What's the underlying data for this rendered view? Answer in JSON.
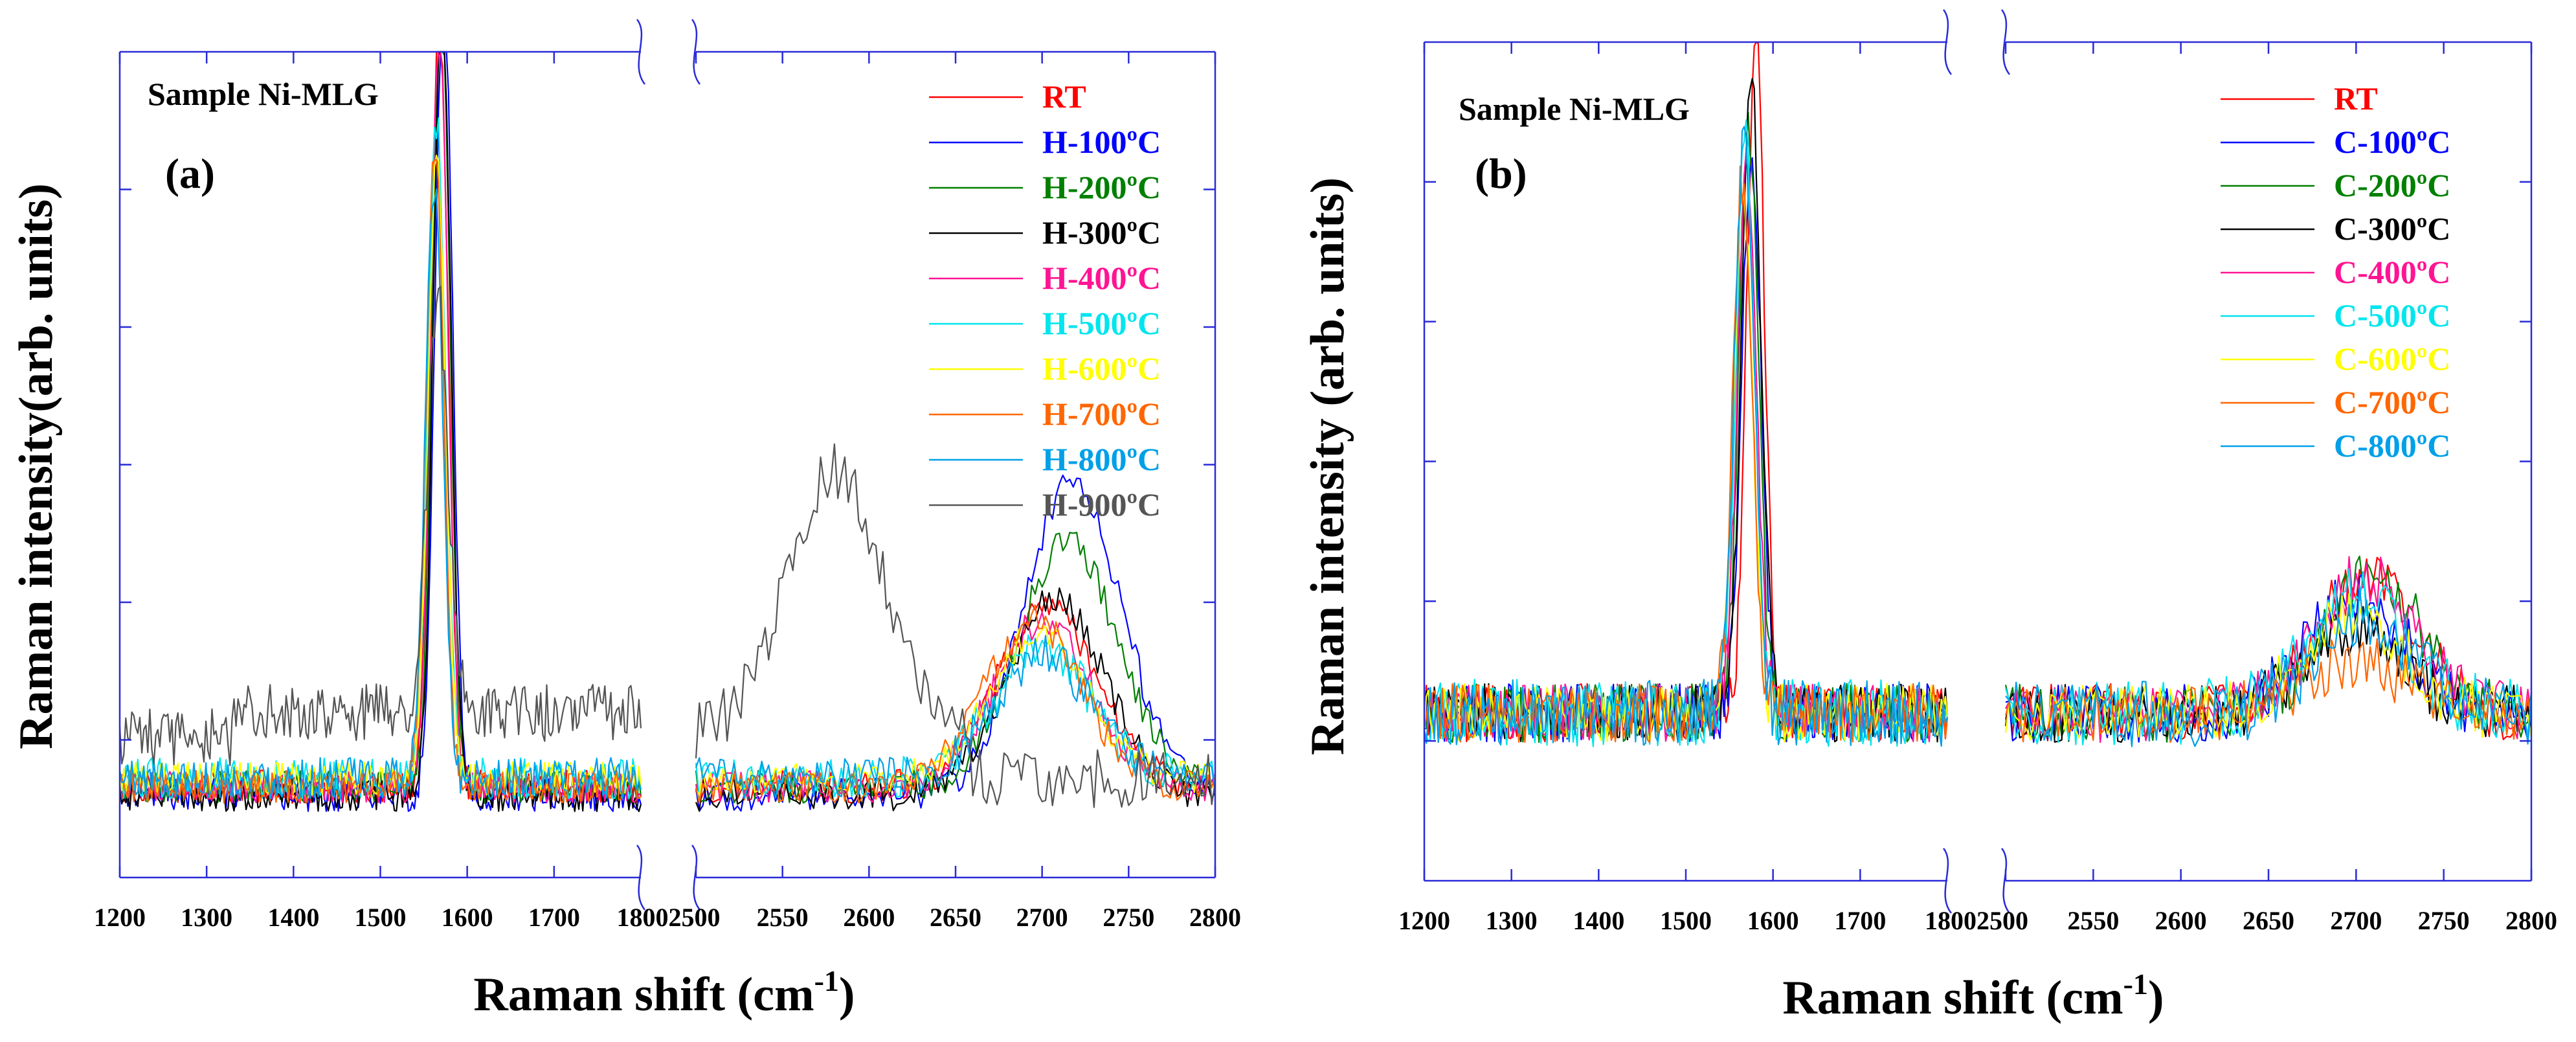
{
  "figure": {
    "panels": [
      "a",
      "b"
    ]
  },
  "chart_data": [
    {
      "type": "line",
      "panel_label": "(a)",
      "sample_label": "Sample Ni-MLG",
      "ylabel": "Raman intensity(arb. units)",
      "xlabel_main": "Raman shift (cm",
      "xlabel_sup": "-1",
      "xlabel_close": ")",
      "x_ranges": [
        [
          1200,
          1800
        ],
        [
          2500,
          2800
        ]
      ],
      "xticks": [
        [
          1200,
          1300,
          1400,
          1500,
          1600,
          1700
        ],
        [
          2500,
          2550,
          2600,
          2650,
          2700,
          2750,
          2800
        ]
      ],
      "xtick_labels": [
        "1200",
        "1300",
        "1400",
        "1500",
        "1600",
        "1700",
        "18002500",
        "2550",
        "2600",
        "2650",
        "2700",
        "2750",
        "2800"
      ],
      "ylim": [
        0,
        1
      ],
      "legend_position": "top-right",
      "series": [
        {
          "name": "RT",
          "color": "#ff0000",
          "g_center": 1568,
          "g_height": 0.93,
          "g_width": 10,
          "d2_center": 2703,
          "d2_height": 0.22,
          "base": 0.11,
          "noise": 0.02
        },
        {
          "name": "H-100ºC",
          "color": "#0000ff",
          "g_center": 1573,
          "g_height": 0.98,
          "g_width": 10,
          "d2_center": 2718,
          "d2_height": 0.38,
          "base": 0.1,
          "noise": 0.02
        },
        {
          "name": "H-200ºC",
          "color": "#007f00",
          "g_center": 1570,
          "g_height": 0.96,
          "g_width": 10,
          "d2_center": 2715,
          "d2_height": 0.3,
          "base": 0.11,
          "noise": 0.02
        },
        {
          "name": "H-300ºC",
          "color": "#000000",
          "g_center": 1571,
          "g_height": 0.96,
          "g_width": 10,
          "d2_center": 2708,
          "d2_height": 0.24,
          "base": 0.1,
          "noise": 0.02
        },
        {
          "name": "H-400ºC",
          "color": "#ff1493",
          "g_center": 1568,
          "g_height": 0.92,
          "g_width": 10,
          "d2_center": 2700,
          "d2_height": 0.2,
          "base": 0.11,
          "noise": 0.02
        },
        {
          "name": "H-500ºC",
          "color": "#00e5ee",
          "g_center": 1565,
          "g_height": 0.8,
          "g_width": 10,
          "d2_center": 2700,
          "d2_height": 0.16,
          "base": 0.12,
          "noise": 0.025
        },
        {
          "name": "H-600ºC",
          "color": "#ffff00",
          "g_center": 1565,
          "g_height": 0.75,
          "g_width": 10,
          "d2_center": 2698,
          "d2_height": 0.18,
          "base": 0.12,
          "noise": 0.02
        },
        {
          "name": "H-700ºC",
          "color": "#ff6600",
          "g_center": 1563,
          "g_height": 0.78,
          "g_width": 10,
          "d2_center": 2695,
          "d2_height": 0.2,
          "base": 0.11,
          "noise": 0.02
        },
        {
          "name": "H-800ºC",
          "color": "#00a0e8",
          "g_center": 1562,
          "g_height": 0.72,
          "g_width": 10,
          "d2_center": 2700,
          "d2_height": 0.15,
          "base": 0.12,
          "noise": 0.025
        },
        {
          "name": "H-900ºC",
          "color": "#555555",
          "g_center": 1566,
          "g_height": 0.5,
          "g_width": 12,
          "d2_center": 2580,
          "d2_height": 0.32,
          "base": 0.17,
          "noise": 0.035
        }
      ]
    },
    {
      "type": "line",
      "panel_label": "(b)",
      "sample_label": "Sample Ni-MLG",
      "ylabel": "Raman intensity (arb. units)",
      "xlabel_main": "Raman shift (cm",
      "xlabel_sup": "-1",
      "xlabel_close": ")",
      "x_ranges": [
        [
          1200,
          1800
        ],
        [
          2500,
          2800
        ]
      ],
      "xticks": [
        [
          1200,
          1300,
          1400,
          1500,
          1600,
          1700
        ],
        [
          2500,
          2550,
          2600,
          2650,
          2700,
          2750,
          2800
        ]
      ],
      "xtick_labels": [
        "1200",
        "1300",
        "1400",
        "1500",
        "1600",
        "1700",
        "18002500",
        "2550",
        "2600",
        "2650",
        "2700",
        "2750",
        "2800"
      ],
      "ylim": [
        0,
        1
      ],
      "legend_position": "top-right",
      "series": [
        {
          "name": "RT",
          "color": "#ff0000",
          "g_center": 1580,
          "g_height": 0.82,
          "g_width": 10,
          "d2_center": 2705,
          "d2_height": 0.16,
          "base": 0.2,
          "noise": 0.035
        },
        {
          "name": "C-100ºC",
          "color": "#0000ff",
          "g_center": 1575,
          "g_height": 0.68,
          "g_width": 11,
          "d2_center": 2700,
          "d2_height": 0.14,
          "base": 0.2,
          "noise": 0.035
        },
        {
          "name": "C-200ºC",
          "color": "#007f00",
          "g_center": 1572,
          "g_height": 0.7,
          "g_width": 11,
          "d2_center": 2710,
          "d2_height": 0.16,
          "base": 0.2,
          "noise": 0.035
        },
        {
          "name": "C-300ºC",
          "color": "#000000",
          "g_center": 1575,
          "g_height": 0.77,
          "g_width": 11,
          "d2_center": 2700,
          "d2_height": 0.1,
          "base": 0.2,
          "noise": 0.035
        },
        {
          "name": "C-400ºC",
          "color": "#ff1493",
          "g_center": 1570,
          "g_height": 0.66,
          "g_width": 11,
          "d2_center": 2705,
          "d2_height": 0.16,
          "base": 0.2,
          "noise": 0.035
        },
        {
          "name": "C-500ºC",
          "color": "#00e5ee",
          "g_center": 1568,
          "g_height": 0.68,
          "g_width": 11,
          "d2_center": 2700,
          "d2_height": 0.14,
          "base": 0.2,
          "noise": 0.04
        },
        {
          "name": "C-600ºC",
          "color": "#ffff00",
          "g_center": 1566,
          "g_height": 0.62,
          "g_width": 11,
          "d2_center": 2700,
          "d2_height": 0.12,
          "base": 0.2,
          "noise": 0.035
        },
        {
          "name": "C-700ºC",
          "color": "#ff6600",
          "g_center": 1565,
          "g_height": 0.64,
          "g_width": 11,
          "d2_center": 2700,
          "d2_height": 0.06,
          "base": 0.2,
          "noise": 0.035
        },
        {
          "name": "C-800ºC",
          "color": "#00a0e8",
          "g_center": 1567,
          "g_height": 0.7,
          "g_width": 11,
          "d2_center": 2705,
          "d2_height": 0.12,
          "base": 0.2,
          "noise": 0.04
        }
      ]
    }
  ]
}
